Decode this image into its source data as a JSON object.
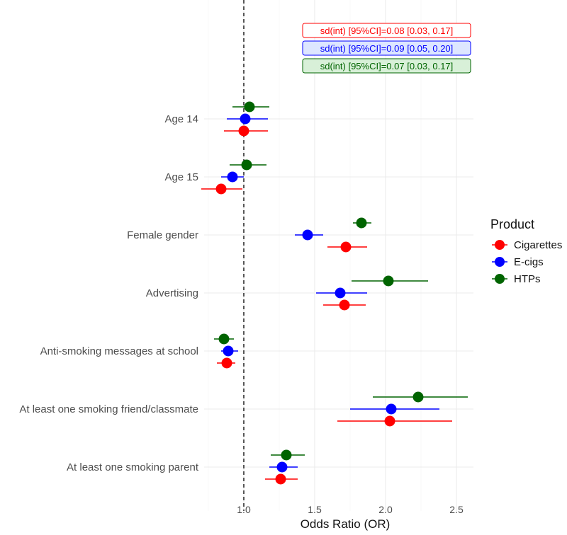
{
  "chart_data": {
    "type": "forest",
    "xlabel": "Odds Ratio (OR)",
    "ylabel": "",
    "xlim": [
      0.72,
      2.62
    ],
    "xticks": [
      1.0,
      1.5,
      2.0,
      2.5
    ],
    "xtick_labels": [
      "1.0",
      "1.5",
      "2.0",
      "2.5"
    ],
    "reference_line": 1.0,
    "grid": true,
    "categories": [
      "Age 14",
      "Age 15",
      "Female gender",
      "Advertising",
      "Anti-smoking messages at school",
      "At least one smoking friend/classmate",
      "At least one smoking parent"
    ],
    "series": [
      {
        "name": "Cigarettes",
        "color": "#ff0000",
        "points": [
          {
            "or": 1.0,
            "lo": 0.86,
            "hi": 1.17
          },
          {
            "or": 0.84,
            "lo": 0.7,
            "hi": 0.99
          },
          {
            "or": 1.72,
            "lo": 1.59,
            "hi": 1.87
          },
          {
            "or": 1.71,
            "lo": 1.56,
            "hi": 1.86
          },
          {
            "or": 0.88,
            "lo": 0.81,
            "hi": 0.94
          },
          {
            "or": 2.03,
            "lo": 1.66,
            "hi": 2.47
          },
          {
            "or": 1.26,
            "lo": 1.15,
            "hi": 1.38
          }
        ]
      },
      {
        "name": "E-cigs",
        "color": "#0000ff",
        "points": [
          {
            "or": 1.01,
            "lo": 0.88,
            "hi": 1.17
          },
          {
            "or": 0.92,
            "lo": 0.84,
            "hi": 1.0
          },
          {
            "or": 1.45,
            "lo": 1.36,
            "hi": 1.56
          },
          {
            "or": 1.68,
            "lo": 1.51,
            "hi": 1.87
          },
          {
            "or": 0.89,
            "lo": 0.84,
            "hi": 0.96
          },
          {
            "or": 2.04,
            "lo": 1.75,
            "hi": 2.38
          },
          {
            "or": 1.27,
            "lo": 1.18,
            "hi": 1.38
          }
        ]
      },
      {
        "name": "HTPs",
        "color": "#006400",
        "points": [
          {
            "or": 1.04,
            "lo": 0.92,
            "hi": 1.18
          },
          {
            "or": 1.02,
            "lo": 0.9,
            "hi": 1.16
          },
          {
            "or": 1.83,
            "lo": 1.77,
            "hi": 1.9
          },
          {
            "or": 2.02,
            "lo": 1.76,
            "hi": 2.3
          },
          {
            "or": 0.86,
            "lo": 0.79,
            "hi": 0.93
          },
          {
            "or": 2.23,
            "lo": 1.91,
            "hi": 2.58
          },
          {
            "or": 1.3,
            "lo": 1.19,
            "hi": 1.43
          }
        ]
      }
    ],
    "annotations": [
      {
        "text": "sd(int) [95%CI]=0.08 [0.03, 0.17]",
        "color": "#ff0000",
        "fill": "#ffffff"
      },
      {
        "text": "sd(int) [95%CI]=0.09 [0.05, 0.20]",
        "color": "#0000ff",
        "fill": "#dde6ff"
      },
      {
        "text": "sd(int) [95%CI]=0.07 [0.03, 0.17]",
        "color": "#006400",
        "fill": "#d8f0d8"
      }
    ],
    "legend": {
      "title": "Product",
      "position": "right",
      "entries": [
        "Cigarettes",
        "E-cigs",
        "HTPs"
      ]
    }
  }
}
